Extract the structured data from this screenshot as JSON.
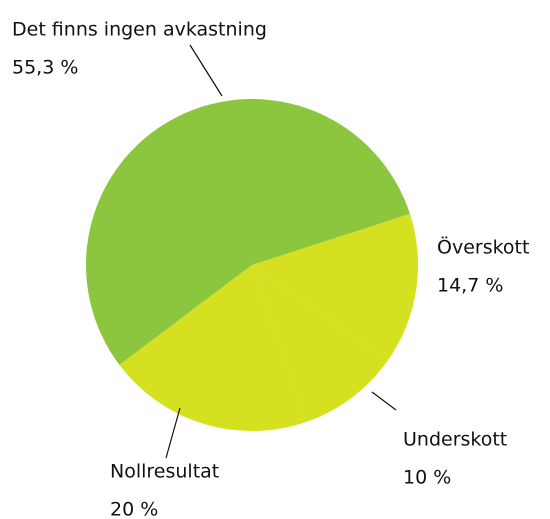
{
  "chart_data": {
    "type": "pie",
    "categories": [
      "Det finns ingen avkastning",
      "Överskott",
      "Underskott",
      "Nollresultat"
    ],
    "values": [
      55.3,
      14.7,
      10,
      20
    ],
    "value_labels": [
      "55,3 %",
      "14,7 %",
      "10 %",
      "20 %"
    ],
    "colors": [
      "#8cc63f",
      "#d5e021",
      "#d5e021",
      "#d5e021"
    ]
  }
}
